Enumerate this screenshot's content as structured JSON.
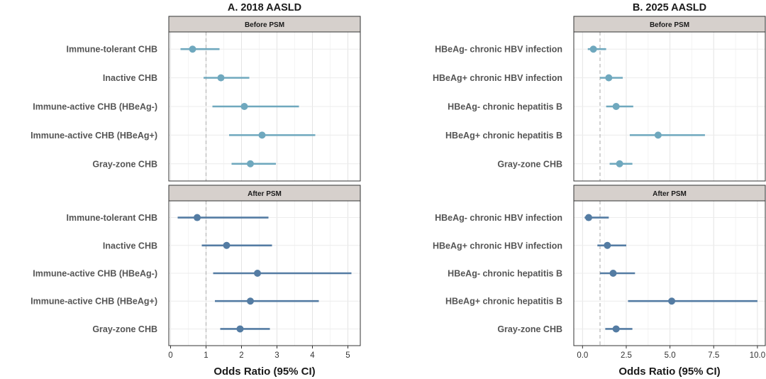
{
  "chart_data": [
    {
      "type": "forest",
      "title": "A. 2018 AASLD",
      "xlabel": "Odds Ratio (95% CI)",
      "xlim": [
        -0.05,
        5.35
      ],
      "xticks": [
        0,
        1,
        2,
        3,
        4,
        5
      ],
      "xtick_labels": [
        "0",
        "1",
        "2",
        "3",
        "4",
        "5"
      ],
      "reference_line": 1,
      "categories": [
        "Immune-tolerant CHB",
        "Inactive CHB",
        "Immune-active CHB (HBeAg-)",
        "Immune-active CHB (HBeAg+)",
        "Gray-zone CHB"
      ],
      "panels": [
        {
          "name": "Before PSM",
          "color": "#6fa8be",
          "estimates": [
            0.62,
            1.42,
            2.08,
            2.58,
            2.25
          ],
          "lower": [
            0.28,
            0.93,
            1.18,
            1.65,
            1.72
          ],
          "upper": [
            1.38,
            2.22,
            3.62,
            4.08,
            2.97
          ]
        },
        {
          "name": "After PSM",
          "color": "#547ca3",
          "estimates": [
            0.75,
            1.58,
            2.45,
            2.25,
            1.96
          ],
          "lower": [
            0.2,
            0.88,
            1.2,
            1.25,
            1.4
          ],
          "upper": [
            2.76,
            2.86,
            5.1,
            4.18,
            2.8
          ]
        }
      ],
      "grid": true
    },
    {
      "type": "forest",
      "title": "B. 2025 AASLD",
      "xlabel": "Odds Ratio (95% CI)",
      "xlim": [
        -0.5,
        10.45
      ],
      "xticks": [
        0,
        2.5,
        5,
        7.5,
        10
      ],
      "xtick_labels": [
        "0.0",
        "2.5",
        "5.0",
        "7.5",
        "10.0"
      ],
      "reference_line": 1,
      "categories": [
        "HBeAg- chronic HBV infection",
        "HBeAg+ chronic HBV infection",
        "HBeAg- chronic hepatitis B",
        "HBeAg+ chronic hepatitis B",
        "Gray-zone CHB"
      ],
      "panels": [
        {
          "name": "Before PSM",
          "color": "#6fa8be",
          "estimates": [
            0.62,
            1.5,
            1.92,
            4.32,
            2.12
          ],
          "lower": [
            0.3,
            1.0,
            1.35,
            2.7,
            1.55
          ],
          "upper": [
            1.35,
            2.3,
            2.9,
            7.0,
            2.85
          ]
        },
        {
          "name": "After PSM",
          "color": "#547ca3",
          "estimates": [
            0.35,
            1.42,
            1.75,
            5.1,
            1.92
          ],
          "lower": [
            0.12,
            0.85,
            1.0,
            2.6,
            1.3
          ],
          "upper": [
            1.5,
            2.5,
            3.0,
            10.0,
            2.85
          ]
        }
      ],
      "grid": true
    }
  ]
}
